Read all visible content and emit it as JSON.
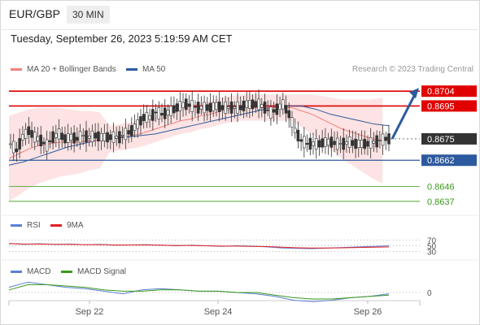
{
  "header": {
    "symbol": "EUR/GBP",
    "timeframe": "30 MIN",
    "datetime": "Tuesday, September 26, 2023 5:19:59 AM CET"
  },
  "legend_main": [
    {
      "label": "MA 20 + Bollinger Bands",
      "color": "#f08080"
    },
    {
      "label": "MA 50",
      "color": "#2d5a9e"
    }
  ],
  "research_note": "Research © 2023 Trading Central",
  "legend_rsi": [
    {
      "label": "RSI",
      "color": "#5b7fd6"
    },
    {
      "label": "9MA",
      "color": "#e02020"
    }
  ],
  "legend_macd": [
    {
      "label": "MACD",
      "color": "#5b7fd6"
    },
    {
      "label": "MACD Signal",
      "color": "#3a9a1a"
    }
  ],
  "colors": {
    "resistance": "#e00000",
    "support": "#2d5a9e",
    "target": "#3a9a1a",
    "arrow": "#2d5a9e",
    "band_fill": "#fde3e3",
    "last_price": "#333333"
  },
  "chart_data": [
    {
      "type": "candlestick",
      "name": "price",
      "x_ticks": [
        "Sep 22",
        "Sep 24",
        "Sep 26"
      ],
      "levels": [
        {
          "value": 0.8704,
          "label": "0.8704",
          "role": "resistance"
        },
        {
          "value": 0.8695,
          "label": "0.8695",
          "role": "resistance"
        },
        {
          "value": 0.8675,
          "label": "0.8675",
          "role": "last_price"
        },
        {
          "value": 0.8662,
          "label": "0.8662",
          "role": "support"
        },
        {
          "value": 0.8646,
          "label": "0.8646",
          "role": "target"
        },
        {
          "value": 0.8637,
          "label": "0.8637",
          "role": "target"
        }
      ],
      "close_path": [
        0.8672,
        0.8668,
        0.8676,
        0.868,
        0.8676,
        0.8674,
        0.8671,
        0.8676,
        0.8678,
        0.8675,
        0.8676,
        0.8675,
        0.8677,
        0.8676,
        0.8677,
        0.8676,
        0.8676,
        0.8676,
        0.8676,
        0.8678,
        0.868,
        0.8684,
        0.8688,
        0.8688,
        0.8691,
        0.869,
        0.8691,
        0.8693,
        0.8695,
        0.8696,
        0.8695,
        0.8694,
        0.8694,
        0.8694,
        0.8695,
        0.8694,
        0.8694,
        0.8694,
        0.8694,
        0.8696,
        0.8696,
        0.8696,
        0.8694,
        0.8691,
        0.8693,
        0.8696,
        0.869,
        0.868,
        0.8674,
        0.8672,
        0.8672,
        0.8672,
        0.8673,
        0.8673,
        0.8672,
        0.8672,
        0.8673,
        0.8672,
        0.8672,
        0.8672,
        0.8673,
        0.8674,
        0.8675
      ],
      "ma20": [
        0.8663,
        0.8666,
        0.8669,
        0.8671,
        0.8672,
        0.8673,
        0.8673,
        0.8673,
        0.8674,
        0.8674,
        0.8675,
        0.8676,
        0.8677,
        0.8678,
        0.868,
        0.8682,
        0.8684,
        0.8686,
        0.8687,
        0.8689,
        0.869,
        0.8692,
        0.8693,
        0.8694,
        0.8694,
        0.8694,
        0.8694,
        0.8694,
        0.8694,
        0.8692,
        0.869,
        0.8687,
        0.8684,
        0.8681,
        0.8679,
        0.8677,
        0.8675,
        0.8674
      ],
      "ma50": [
        0.8659,
        0.8661,
        0.8664,
        0.8667,
        0.867,
        0.8672,
        0.8674,
        0.8675,
        0.8676,
        0.8677,
        0.8678,
        0.868,
        0.8682,
        0.8684,
        0.8686,
        0.8688,
        0.869,
        0.8692,
        0.8694,
        0.8695,
        0.8695,
        0.8693,
        0.869,
        0.8688,
        0.8686,
        0.8684,
        0.8683
      ],
      "forecast_arrow": {
        "from": 0.8675,
        "to": 0.8704
      }
    },
    {
      "type": "line",
      "name": "RSI",
      "y_ticks": [
        "70",
        "50",
        "30"
      ],
      "series": [
        {
          "name": "RSI",
          "values": [
            58,
            55,
            57,
            55,
            56,
            54,
            55,
            52,
            53,
            54,
            52,
            50,
            52,
            50,
            48,
            50,
            49,
            46,
            42,
            41,
            40,
            42,
            44,
            46,
            48,
            50
          ]
        },
        {
          "name": "9MA",
          "values": [
            58,
            56,
            56,
            55,
            55,
            54,
            54,
            53,
            53,
            53,
            52,
            51,
            51,
            50,
            49,
            49,
            48,
            47,
            45,
            43,
            42,
            42,
            43,
            44,
            45,
            46
          ]
        }
      ]
    },
    {
      "type": "line",
      "name": "MACD",
      "y_ticks": [
        "0"
      ],
      "series": [
        {
          "name": "MACD",
          "values": [
            0.0004,
            0.0008,
            0.0006,
            0.0004,
            0.0003,
            0.0001,
            -0.0001,
            0.0002,
            0.0003,
            0.0002,
            0.0001,
            0.0001,
            0.0,
            -0.0001,
            -0.0003,
            -0.0006,
            -0.0007,
            -0.0006,
            -0.0004,
            -0.0003,
            -0.0001
          ]
        },
        {
          "name": "MACD Signal",
          "values": [
            0.0002,
            0.0006,
            0.0006,
            0.0005,
            0.0004,
            0.0002,
            0.0001,
            0.0001,
            0.0002,
            0.0002,
            0.0001,
            0.0001,
            0.0,
            -0.0,
            -0.0002,
            -0.0004,
            -0.0005,
            -0.0005,
            -0.0004,
            -0.0003,
            -0.0002
          ]
        }
      ]
    }
  ]
}
